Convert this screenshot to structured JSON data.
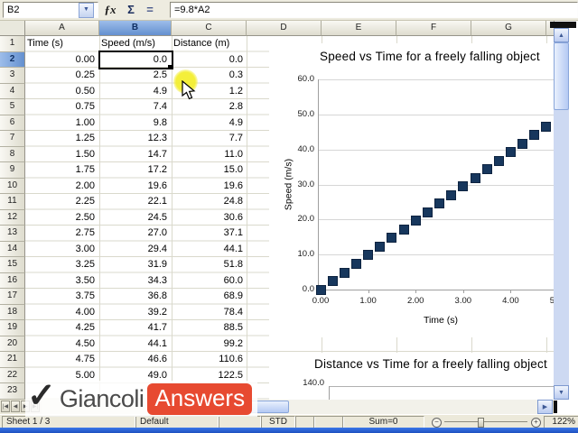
{
  "formula_bar": {
    "cell_reference": "B2",
    "formula": "=9.8*A2",
    "function_wizard": "ƒx",
    "sum_icon": "Σ",
    "equals_icon": "="
  },
  "icons": {
    "dropdown": "▼",
    "scroll_up": "▲",
    "scroll_down": "▼",
    "scroll_right": "▶",
    "zoom_out": "−",
    "zoom_in": "+",
    "tab_first": "|◀",
    "tab_prev": "◀",
    "tab_next": "▶",
    "tab_last": "▶|",
    "check": "✓"
  },
  "column_headers": [
    "A",
    "B",
    "C",
    "D",
    "E",
    "F",
    "G"
  ],
  "row_count": 23,
  "selected": {
    "column": "B",
    "row": 2
  },
  "table": {
    "headers": [
      "Time (s)",
      "Speed (m/s)",
      "Distance (m)"
    ],
    "rows": [
      [
        "0.00",
        "0.0",
        "0.0"
      ],
      [
        "0.25",
        "2.5",
        "0.3"
      ],
      [
        "0.50",
        "4.9",
        "1.2"
      ],
      [
        "0.75",
        "7.4",
        "2.8"
      ],
      [
        "1.00",
        "9.8",
        "4.9"
      ],
      [
        "1.25",
        "12.3",
        "7.7"
      ],
      [
        "1.50",
        "14.7",
        "11.0"
      ],
      [
        "1.75",
        "17.2",
        "15.0"
      ],
      [
        "2.00",
        "19.6",
        "19.6"
      ],
      [
        "2.25",
        "22.1",
        "24.8"
      ],
      [
        "2.50",
        "24.5",
        "30.6"
      ],
      [
        "2.75",
        "27.0",
        "37.1"
      ],
      [
        "3.00",
        "29.4",
        "44.1"
      ],
      [
        "3.25",
        "31.9",
        "51.8"
      ],
      [
        "3.50",
        "34.3",
        "60.0"
      ],
      [
        "3.75",
        "36.8",
        "68.9"
      ],
      [
        "4.00",
        "39.2",
        "78.4"
      ],
      [
        "4.25",
        "41.7",
        "88.5"
      ],
      [
        "4.50",
        "44.1",
        "99.2"
      ],
      [
        "4.75",
        "46.6",
        "110.6"
      ],
      [
        "5.00",
        "49.0",
        "122.5"
      ]
    ]
  },
  "chart_data": [
    {
      "type": "scatter",
      "title": "Speed vs Time for a freely falling object",
      "xlabel": "Time (s)",
      "ylabel": "Speed (m/s)",
      "xlim": [
        0,
        5.25
      ],
      "ylim": [
        0,
        60
      ],
      "x_tick_labels": [
        "0.00",
        "1.00",
        "2.00",
        "3.00",
        "4.00",
        "5.00"
      ],
      "y_tick_labels": [
        "0.0",
        "10.0",
        "20.0",
        "30.0",
        "40.0",
        "50.0",
        "60.0"
      ],
      "x": [
        0,
        0.25,
        0.5,
        0.75,
        1.0,
        1.25,
        1.5,
        1.75,
        2.0,
        2.25,
        2.5,
        2.75,
        3.0,
        3.25,
        3.5,
        3.75,
        4.0,
        4.25,
        4.5,
        4.75,
        5.0
      ],
      "y": [
        0.0,
        2.5,
        4.9,
        7.4,
        9.8,
        12.3,
        14.7,
        17.2,
        19.6,
        22.1,
        24.5,
        27.0,
        29.4,
        31.9,
        34.3,
        36.8,
        39.2,
        41.7,
        44.1,
        46.6,
        49.0
      ],
      "marker": "filled-square",
      "marker_color": "#17375d",
      "grid": true,
      "legend": false
    },
    {
      "type": "scatter",
      "title": "Distance vs Time for a freely falling object",
      "ylim_top_label": "140.0",
      "grid": true,
      "legend": false
    }
  ],
  "logo": {
    "name": "Giancoli",
    "badge": "Answers",
    "badge_color": "#e74a31"
  },
  "status_bar": {
    "sheet": "Sheet 1 / 3",
    "page_style": "Default",
    "mode": "STD",
    "sum": "Sum=0",
    "zoom_level": "122%"
  }
}
